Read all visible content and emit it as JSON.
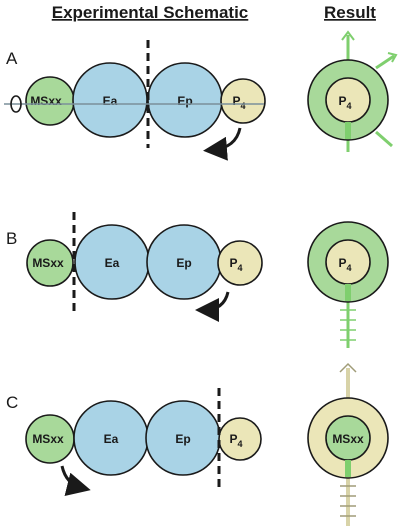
{
  "headers": {
    "schematic": "Experimental Schematic",
    "result": "Result"
  },
  "rows": [
    {
      "letter": "A",
      "cells": {
        "ms": "MSxx",
        "ea": "Ea",
        "ep": "Ep",
        "p4": "P",
        "p4_sub": "4"
      },
      "result_inner": "P",
      "result_inner_sub": "4"
    },
    {
      "letter": "B",
      "cells": {
        "ms": "MSxx",
        "ea": "Ea",
        "ep": "Ep",
        "p4": "P",
        "p4_sub": "4"
      },
      "result_inner": "P",
      "result_inner_sub": "4"
    },
    {
      "letter": "C",
      "cells": {
        "ms": "MSxx",
        "ea": "Ea",
        "ep": "Ep",
        "p4": "P",
        "p4_sub": "4"
      },
      "result_inner": "MSxx",
      "result_inner_sub": ""
    }
  ],
  "colors": {
    "ms_green": "#a8d99a",
    "ab_blue": "#a9d3e6",
    "p4_tan": "#ebe6b8",
    "arrow_green": "#7fcf6e",
    "arrow_tan": "#d8d3a8"
  }
}
